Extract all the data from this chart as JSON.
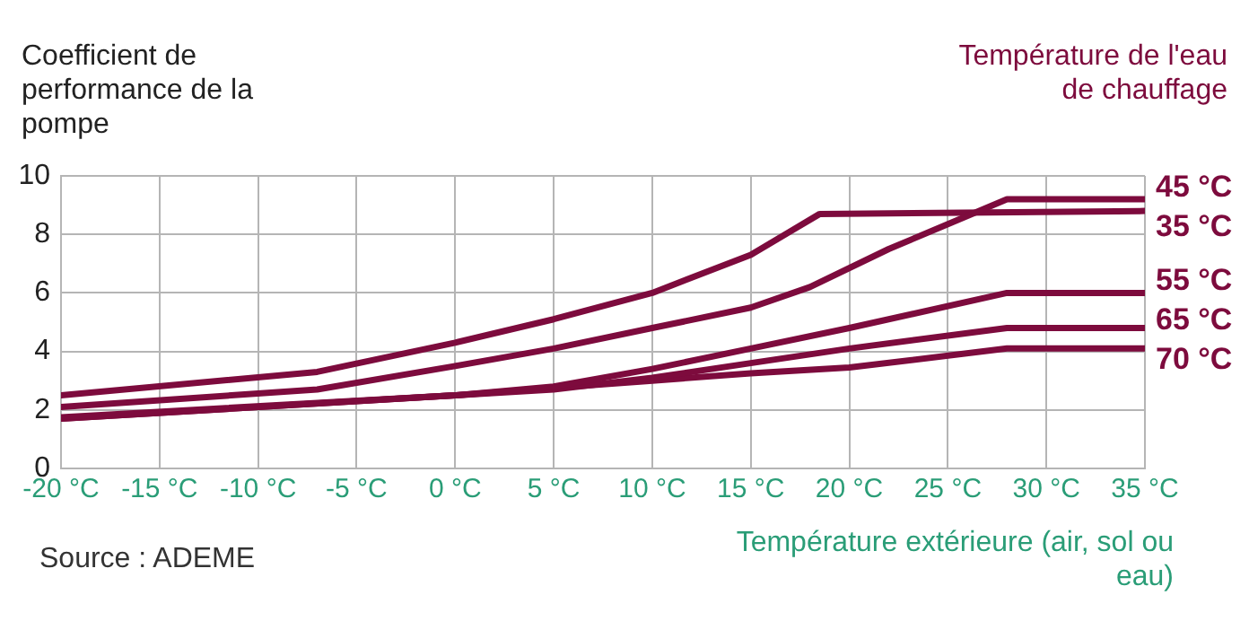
{
  "chart_data": {
    "type": "line",
    "ylabel": "Coefficient de performance de la pompe",
    "legend_title": "Température de l'eau de chauffage",
    "xlabel": "Température extérieure (air, sol ou eau)",
    "annotations": [
      "Source : ADEME"
    ],
    "xlim": [
      -20,
      35
    ],
    "xticks": [
      {
        "value": -20,
        "label": "-20 °C"
      },
      {
        "value": -15,
        "label": "-15 °C"
      },
      {
        "value": -10,
        "label": "-10 °C"
      },
      {
        "value": -5,
        "label": "-5 °C"
      },
      {
        "value": 0,
        "label": "0 °C"
      },
      {
        "value": 5,
        "label": "5 °C"
      },
      {
        "value": 10,
        "label": "10 °C"
      },
      {
        "value": 15,
        "label": "15 °C"
      },
      {
        "value": 20,
        "label": "20 °C"
      },
      {
        "value": 25,
        "label": "25 °C"
      },
      {
        "value": 30,
        "label": "30 °C"
      },
      {
        "value": 35,
        "label": "35 °C"
      }
    ],
    "ylim": [
      0,
      10
    ],
    "yticks": [
      0,
      2,
      4,
      6,
      8,
      10
    ],
    "grid": true,
    "marker": "none",
    "line_style": "solid",
    "series": [
      {
        "name": "45 °C",
        "color": "#7d0b3d",
        "x": [
          -20,
          -7,
          0,
          5,
          10,
          15,
          18,
          22,
          28,
          35
        ],
        "values": [
          2.1,
          2.7,
          3.5,
          4.1,
          4.8,
          5.5,
          6.2,
          7.5,
          9.2,
          9.2
        ]
      },
      {
        "name": "35 °C",
        "color": "#7d0b3d",
        "x": [
          -20,
          -7,
          0,
          5,
          10,
          15,
          18.5,
          35
        ],
        "values": [
          2.5,
          3.3,
          4.3,
          5.1,
          6.0,
          7.3,
          8.7,
          8.8
        ]
      },
      {
        "name": "55 °C",
        "color": "#7d0b3d",
        "x": [
          -20,
          0,
          5,
          10,
          15,
          20,
          28,
          35
        ],
        "values": [
          1.75,
          2.5,
          2.8,
          3.4,
          4.1,
          4.8,
          6.0,
          6.0
        ]
      },
      {
        "name": "65 °C",
        "color": "#7d0b3d",
        "x": [
          -20,
          0,
          5,
          10,
          15,
          20,
          28,
          35
        ],
        "values": [
          1.7,
          2.5,
          2.7,
          3.1,
          3.6,
          4.1,
          4.8,
          4.8
        ]
      },
      {
        "name": "70 °C",
        "color": "#7d0b3d",
        "x": [
          -20,
          0,
          5,
          10,
          15,
          20,
          28,
          35
        ],
        "values": [
          1.7,
          2.5,
          2.75,
          3.0,
          3.25,
          3.45,
          4.1,
          4.1
        ]
      }
    ]
  }
}
